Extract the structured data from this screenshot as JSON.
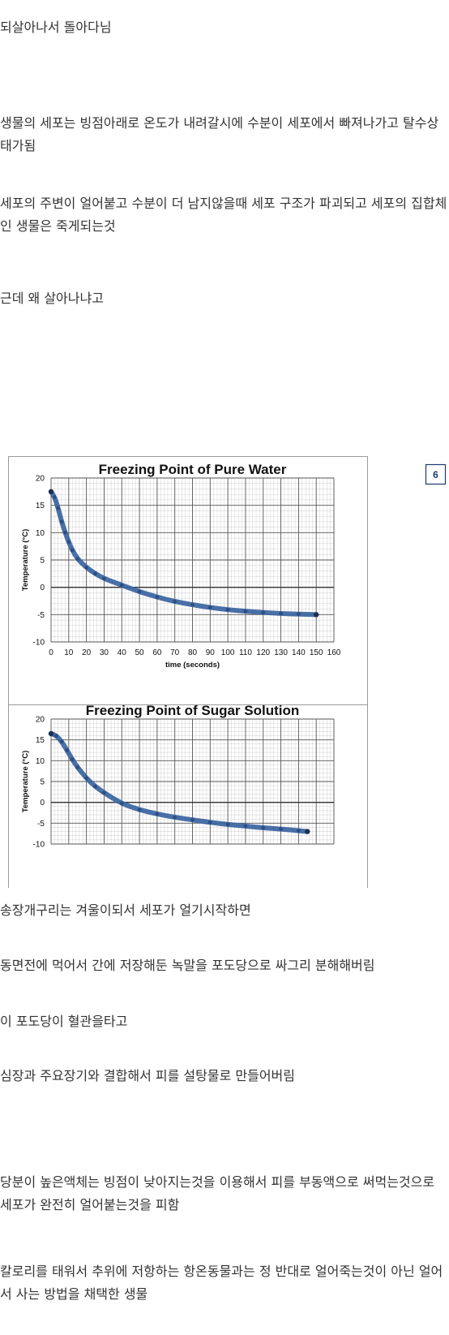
{
  "post": {
    "paragraphs": [
      "되살아나서 돌아다님",
      "생물의 세포는 빙점아래로 온도가 내려갈시에 수분이 세포에서 빠져나가고 탈수상태가됨",
      "세포의 주변이 얼어붙고 수분이 더 남지않을때 세포 구조가 파괴되고 세포의 집합체인 생물은 죽게되는것",
      "근데 왜 살아나냐고",
      "송장개구리는 겨울이되서 세포가 얼기시작하면",
      "동면전에 먹어서 간에 저장해둔 녹말을 포도당으로 싸그리 분해해버림",
      "이 포도당이 혈관을타고",
      "심장과 주요장기와 결합해서 피를 설탕물로 만들어버림",
      "당분이 높은액체는 빙점이 낮아지는것을 이용해서 피를 부동액으로 써먹는것으로 세포가 완전히 얼어붙는것을 피함",
      "칼로리를 태워서 추위에 저항하는 항온동물과는 정 반대로 얼어죽는것이 아닌 얼어서 사는 방법을 채택한 생물"
    ]
  },
  "figure": {
    "badge": "6",
    "colors": {
      "series": "#3a64a0",
      "border": "#9a9a9a",
      "grid": "#8a8a8a"
    }
  },
  "chart_data": [
    {
      "type": "line",
      "title": "Freezing Point of Pure Water",
      "xlabel": "time (seconds)",
      "ylabel": "Temperature (°C)",
      "xlim": [
        0,
        160
      ],
      "ylim": [
        -10,
        20
      ],
      "x_ticks": [
        "0",
        "10",
        "20",
        "30",
        "40",
        "50",
        "60",
        "70",
        "80",
        "90",
        "100",
        "110",
        "120",
        "130",
        "140",
        "150",
        "160"
      ],
      "y_ticks": [
        "20",
        "15",
        "10",
        "5",
        "0",
        "-5",
        "-10"
      ],
      "grid": true,
      "series": [
        {
          "x": [
            0,
            2,
            4,
            6,
            8,
            10,
            12,
            15,
            20,
            25,
            30,
            40,
            50,
            60,
            70,
            80,
            90,
            100,
            110,
            120,
            130,
            140,
            150
          ],
          "y": [
            17.5,
            16.5,
            14.5,
            12,
            10,
            8.3,
            6.8,
            5.2,
            3.6,
            2.5,
            1.6,
            0.4,
            -0.8,
            -1.8,
            -2.6,
            -3.2,
            -3.7,
            -4.1,
            -4.4,
            -4.6,
            -4.8,
            -4.9,
            -5.0
          ]
        }
      ]
    },
    {
      "type": "line",
      "title": "Freezing Point of Sugar Solution",
      "xlabel": "",
      "ylabel": "Temperature (°C)",
      "xlim": [
        0,
        160
      ],
      "ylim": [
        -10,
        20
      ],
      "x_ticks": [],
      "y_ticks": [
        "20",
        "15",
        "10",
        "5",
        "0",
        "-5",
        "-10"
      ],
      "grid": true,
      "series": [
        {
          "x": [
            0,
            3,
            6,
            9,
            12,
            15,
            20,
            25,
            30,
            40,
            50,
            60,
            70,
            80,
            90,
            100,
            110,
            120,
            130,
            140,
            145
          ],
          "y": [
            16.5,
            16,
            14.6,
            12.5,
            10.3,
            8.4,
            5.8,
            3.8,
            2.3,
            -0.3,
            -1.8,
            -2.8,
            -3.6,
            -4.2,
            -4.8,
            -5.3,
            -5.7,
            -6.1,
            -6.4,
            -6.8,
            -7.0
          ]
        }
      ]
    }
  ]
}
